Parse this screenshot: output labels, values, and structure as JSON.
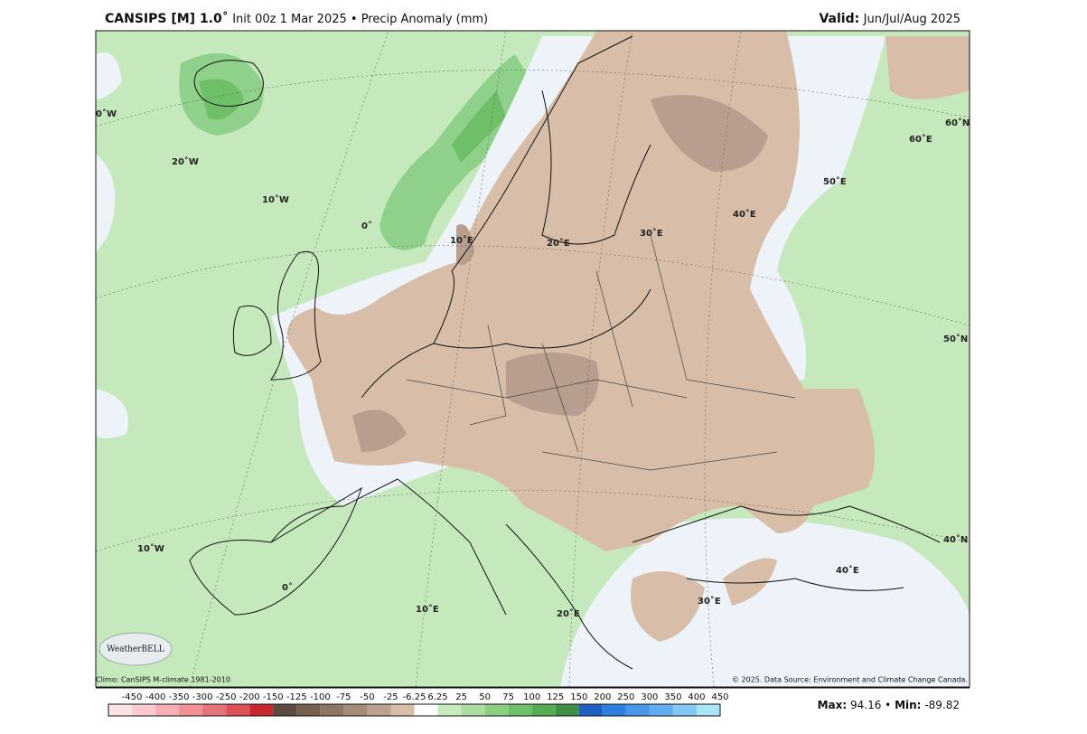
{
  "header": {
    "title_bold": "CANSIPS [M] 1.0˚",
    "title_rest": "Init 00z 1 Mar 2025 • Precip Anomaly (mm)",
    "valid_label": "Valid:",
    "valid_value": "Jun/Jul/Aug 2025"
  },
  "map": {
    "grid_labels": [
      "0˚W",
      "20˚W",
      "10˚W",
      "0˚",
      "10˚E",
      "20˚E",
      "30˚E",
      "40˚E",
      "50˚E",
      "60˚E",
      "60˚N",
      "50˚N",
      "40˚N",
      "10˚W",
      "0˚",
      "10˚E",
      "20˚E",
      "30˚E",
      "40˚E"
    ],
    "logo": "WeatherBELL"
  },
  "footer": {
    "climo": "Climo: CanSIPS M-climate 1981-2010",
    "credit": "© 2025. Data Source: Environment and Climate Change Canada."
  },
  "colorbar": {
    "ticks": [
      -450,
      -400,
      -350,
      -300,
      -250,
      -200,
      -150,
      -125,
      -100,
      -75,
      -50,
      -25,
      -6.25,
      6.25,
      25,
      50,
      75,
      100,
      125,
      150,
      200,
      250,
      300,
      350,
      400,
      450
    ],
    "colors": [
      "#fde3e6",
      "#fbcbd0",
      "#f6aeb2",
      "#ef9195",
      "#e7737a",
      "#dc5257",
      "#c8282c",
      "#5b4a40",
      "#75604f",
      "#8d7664",
      "#a58c79",
      "#bba290",
      "#d8bea9",
      "#ffffff",
      "#c8eabf",
      "#a9dea0",
      "#8ccf82",
      "#6fbf68",
      "#55ad52",
      "#3e8f43",
      "#1f5fc4",
      "#2f7fe0",
      "#4697ea",
      "#62adf0",
      "#82c6f4",
      "#a9e4f7"
    ]
  },
  "stats": {
    "max_label": "Max:",
    "max": 94.16,
    "sep": "•",
    "min_label": "Min:",
    "min": -89.82
  }
}
